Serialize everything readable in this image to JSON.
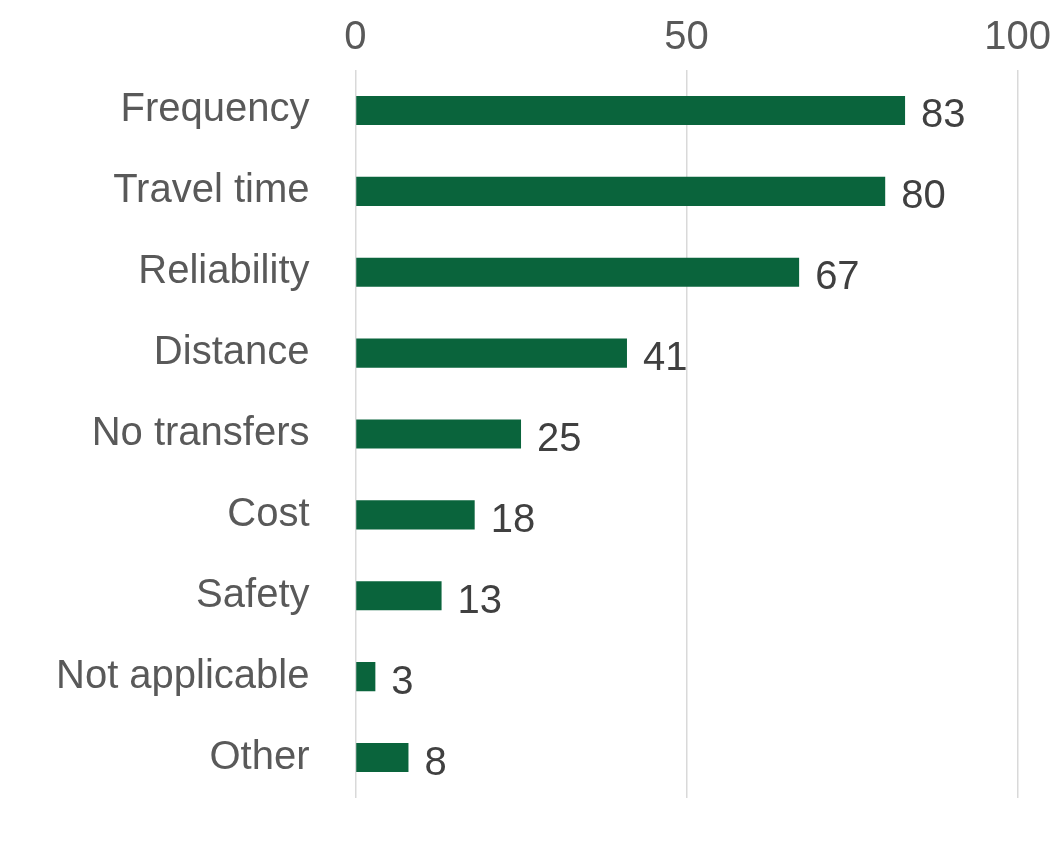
{
  "chart_data": {
    "type": "bar",
    "orientation": "horizontal",
    "categories": [
      "Frequency",
      "Travel time",
      "Reliability",
      "Distance",
      "No transfers",
      "Cost",
      "Safety",
      "Not applicable",
      "Other"
    ],
    "values": [
      83,
      80,
      67,
      41,
      25,
      18,
      13,
      3,
      8
    ],
    "color": "#0a643c",
    "xlim": [
      0,
      100
    ],
    "xticks": [
      0,
      50,
      100
    ],
    "grid": "x",
    "data_labels": true
  }
}
